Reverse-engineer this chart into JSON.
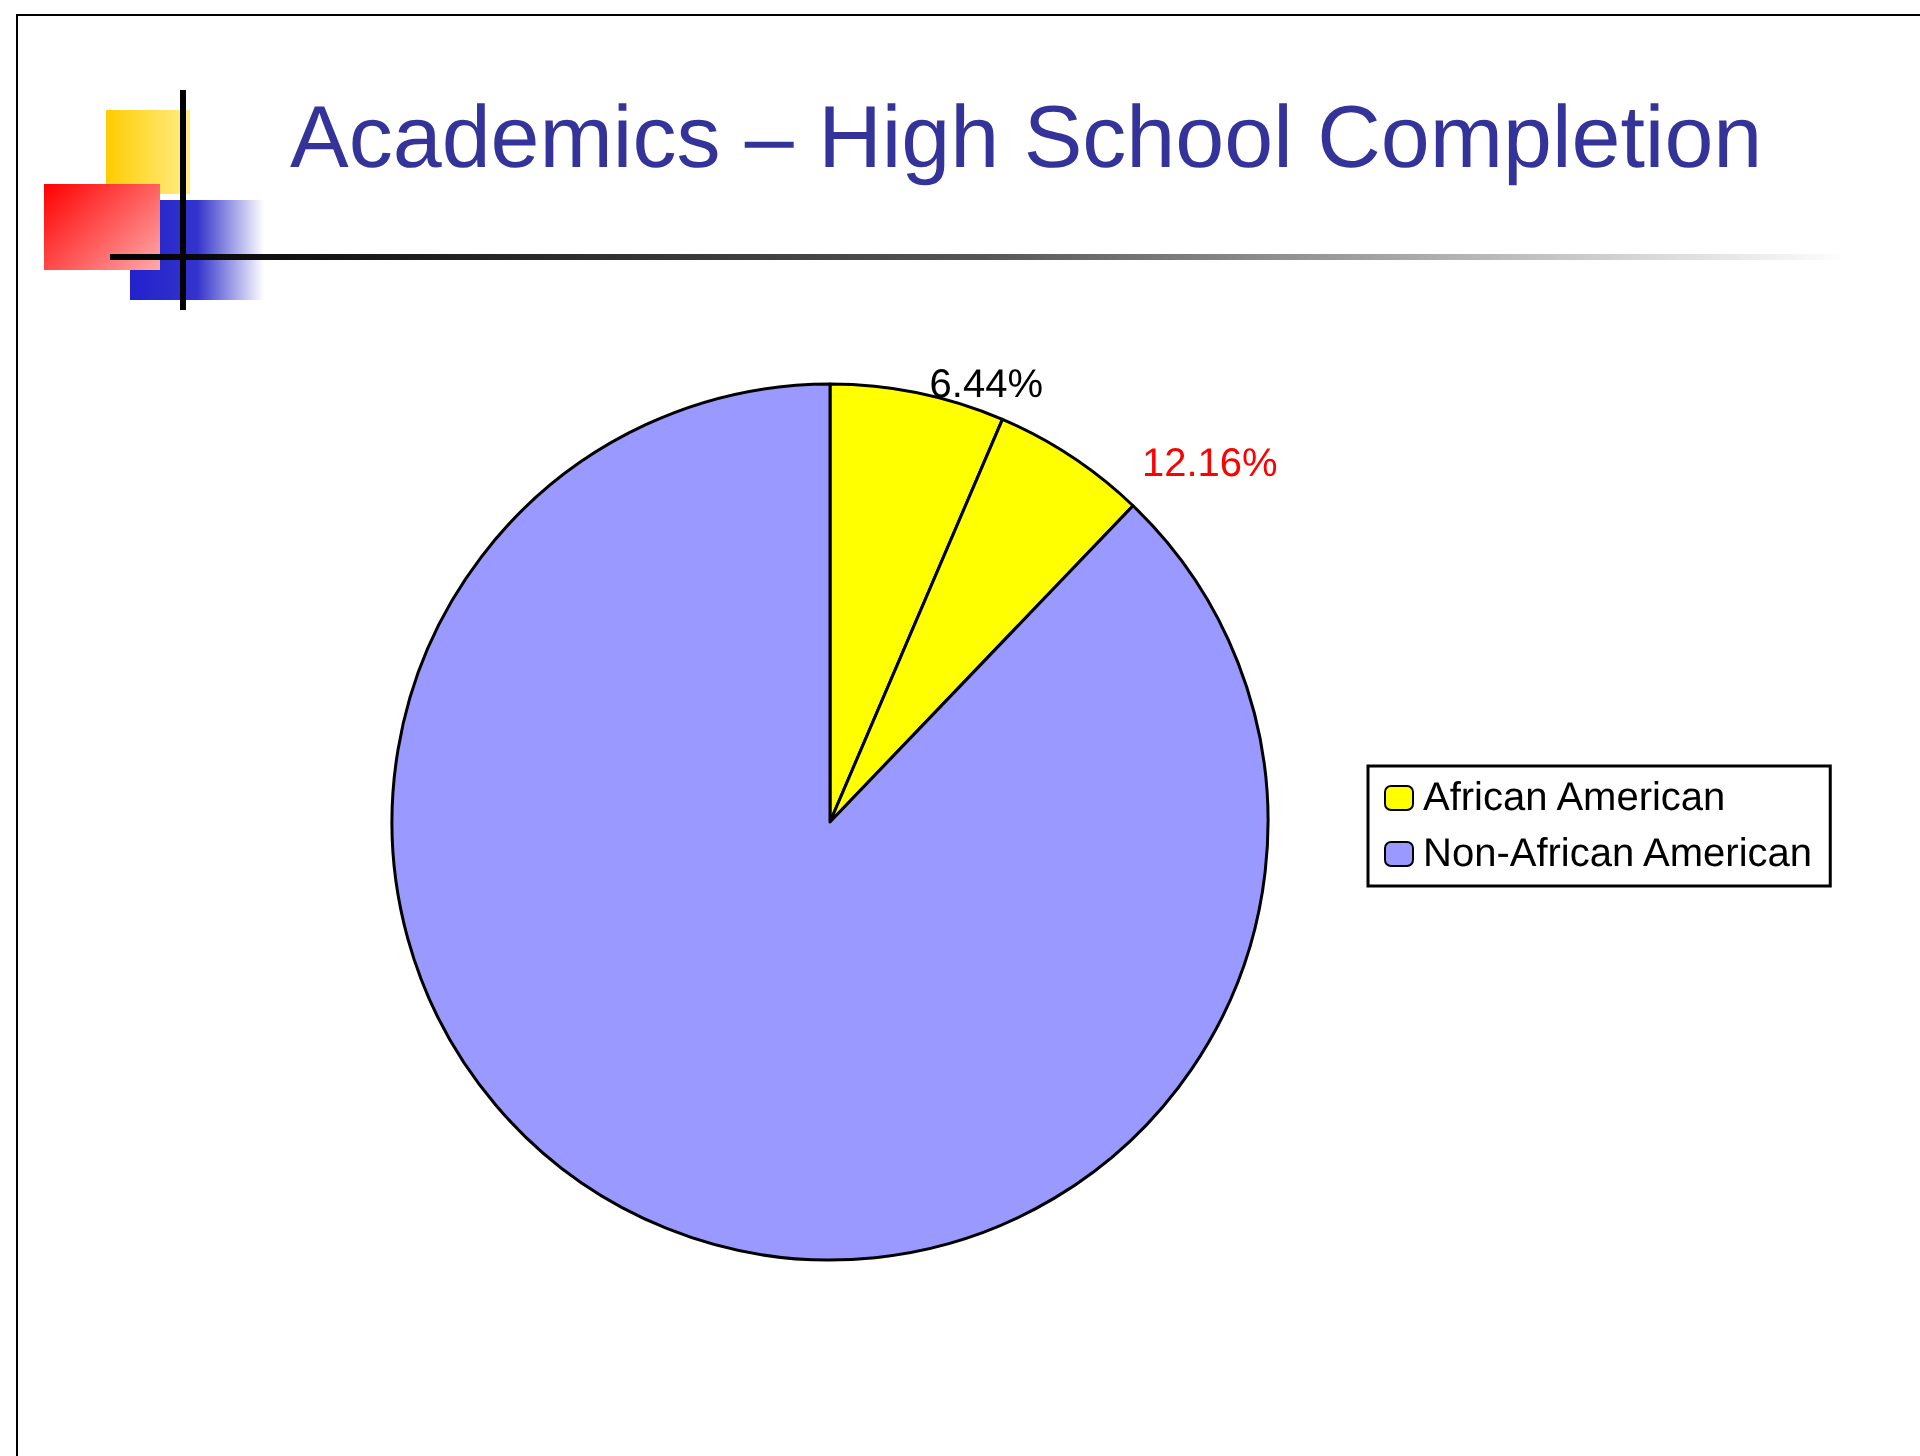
{
  "chart_data": {
    "type": "pie",
    "title": "Academics – High School Completion",
    "categories": [
      "African American",
      null,
      "Non-African American"
    ],
    "values": [
      6.44,
      5.72,
      87.84
    ],
    "colors": [
      "#ffff00",
      "#ffff00",
      "#9999ff"
    ],
    "value_labels": [
      "6.44%",
      null,
      null
    ],
    "annotations": [
      "12.16%"
    ],
    "legend": "right"
  }
}
